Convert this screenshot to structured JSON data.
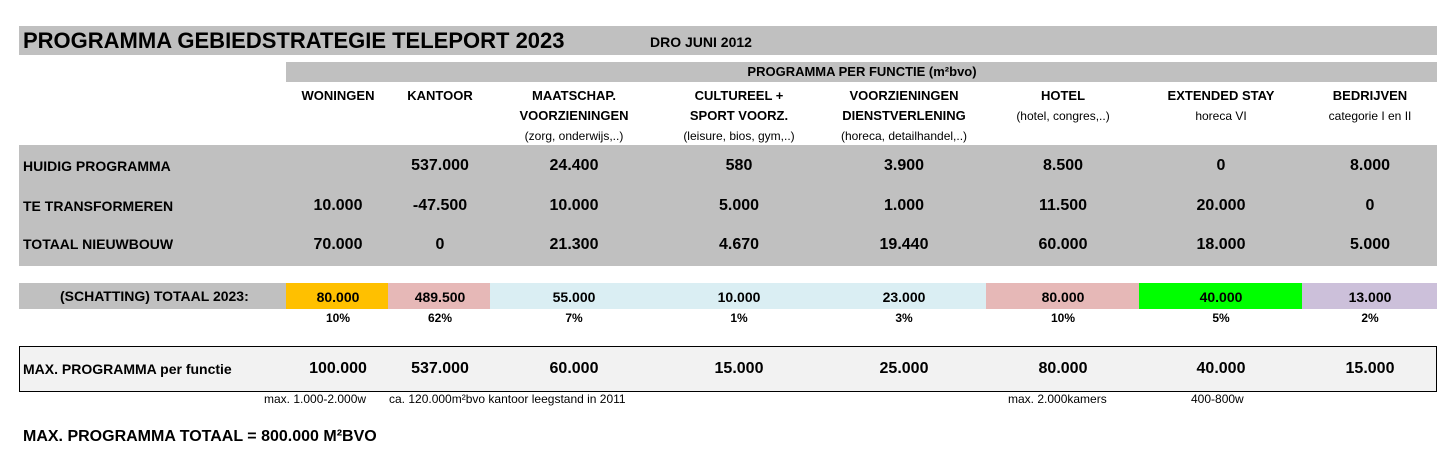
{
  "title": "PROGRAMMA GEBIEDSTRATEGIE TELEPORT 2023",
  "subtitle": "DRO  JUNI 2012",
  "header_group": "PROGRAMMA  PER FUNCTIE (m²bvo)",
  "columns": [
    {
      "line1": "WONINGEN",
      "line2": "",
      "line3": ""
    },
    {
      "line1": "KANTOOR",
      "line2": "",
      "line3": ""
    },
    {
      "line1": "MAATSCHAP.",
      "line2": "VOORZIENINGEN",
      "line3": "(zorg, onderwijs,..)"
    },
    {
      "line1": "CULTUREEL +",
      "line2": "SPORT VOORZ.",
      "line3": "(leisure, bios, gym,..)"
    },
    {
      "line1": "VOORZIENINGEN",
      "line2": "DIENSTVERLENING",
      "line3": "(horeca, detailhandel,..)"
    },
    {
      "line1": "HOTEL",
      "line2": "(hotel, congres,..)",
      "line3": ""
    },
    {
      "line1": "EXTENDED STAY",
      "line2": "horeca VI",
      "line3": ""
    },
    {
      "line1": "BEDRIJVEN",
      "line2": "categorie I en II",
      "line3": ""
    }
  ],
  "rows": [
    {
      "label": "HUIDIG PROGRAMMA",
      "values": [
        "",
        "537.000",
        "24.400",
        "580",
        "3.900",
        "8.500",
        "0",
        "8.000"
      ]
    },
    {
      "label": "TE TRANSFORMEREN",
      "values": [
        "10.000",
        "-47.500",
        "10.000",
        "5.000",
        "1.000",
        "11.500",
        "20.000",
        "0"
      ]
    },
    {
      "label": "TOTAAL NIEUWBOUW",
      "values": [
        "70.000",
        "0",
        "21.300",
        "4.670",
        "19.440",
        "60.000",
        "18.000",
        "5.000"
      ]
    }
  ],
  "estimate": {
    "label": "(SCHATTING) TOTAAL 2023:",
    "values": [
      "80.000",
      "489.500",
      "55.000",
      "10.000",
      "23.000",
      "80.000",
      "40.000",
      "13.000"
    ],
    "percentages": [
      "10%",
      "62%",
      "7%",
      "1%",
      "3%",
      "10%",
      "5%",
      "2%"
    ],
    "colors": [
      "#ffc000",
      "#e6b8b7",
      "#daeef3",
      "#daeef3",
      "#daeef3",
      "#e6b8b7",
      "#00ff00",
      "#ccc0da"
    ]
  },
  "max": {
    "label": "MAX. PROGRAMMA  per functie",
    "values": [
      "100.000",
      "537.000",
      "60.000",
      "15.000",
      "25.000",
      "80.000",
      "40.000",
      "15.000"
    ]
  },
  "notes": {
    "woningen": "max. 1.000-2.000w",
    "kantoor": "ca. 120.000m²bvo kantoor leegstand in 2011",
    "hotel": "max. 2.000kamers",
    "extended_stay": "400-800w"
  },
  "footer": "MAX. PROGRAMMA  TOTAAL = 800.000 M²BVO",
  "colors": {
    "grey": "#c0c0c0",
    "max_bg": "#f2f2f2"
  }
}
